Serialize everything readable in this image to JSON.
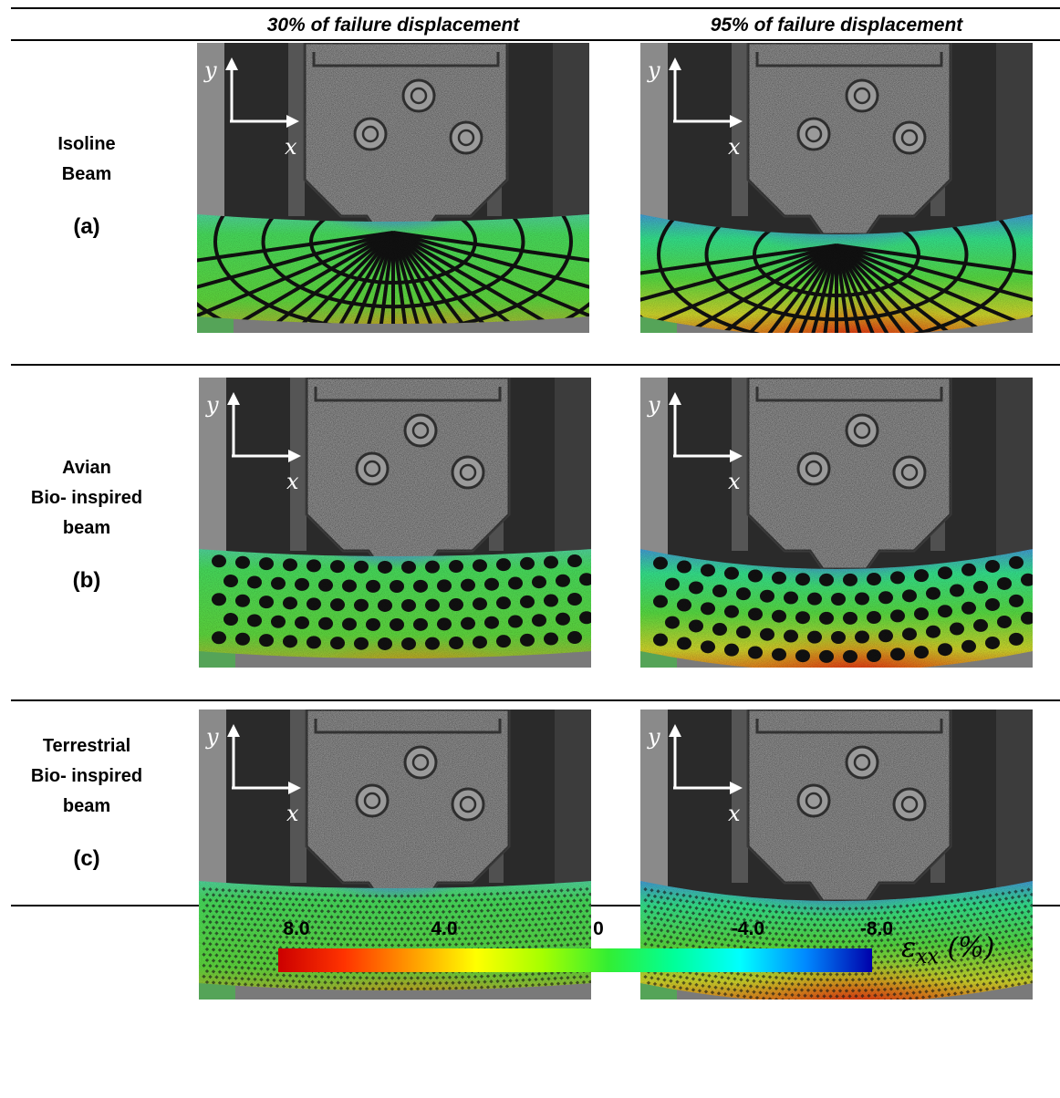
{
  "columns": [
    {
      "title": "30% of failure displacement"
    },
    {
      "title": "95% of failure displacement"
    }
  ],
  "rows": [
    {
      "label_lines": [
        "Isoline",
        "Beam"
      ],
      "tag": "(a)",
      "pattern": "isoline"
    },
    {
      "label_lines": [
        "Avian",
        "Bio- inspired",
        "beam"
      ],
      "tag": "(b)",
      "pattern": "avian"
    },
    {
      "label_lines": [
        "Terrestrial",
        "Bio- inspired",
        "beam"
      ],
      "tag": "(c)",
      "pattern": "terrestrial"
    }
  ],
  "axes_labels": {
    "y": "y",
    "x": "x"
  },
  "colorbar": {
    "ticks": [
      "8.0",
      "4.0",
      "0",
      "-4.0",
      "-8.0"
    ],
    "title_symbol": "ε",
    "title_sub": "xx",
    "title_unit": " (%)",
    "colors": [
      "#cc0000",
      "#ff3300",
      "#ff9900",
      "#ffff00",
      "#a6ff00",
      "#33ee33",
      "#00ff99",
      "#00ffff",
      "#0088ff",
      "#0000aa"
    ]
  }
}
